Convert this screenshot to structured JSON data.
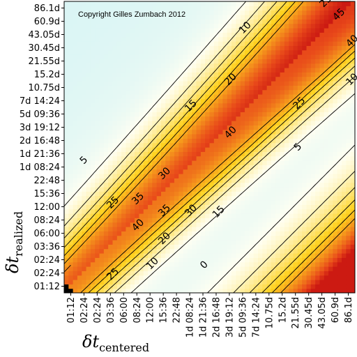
{
  "chart_data": {
    "type": "heatmap",
    "title": "",
    "copyright": "Copyright Gilles Zumbach 2012",
    "xlabel": {
      "main": "δt",
      "sub": "centered"
    },
    "ylabel": {
      "main": "δt",
      "sub": "realized"
    },
    "x_ticks": [
      "01:12",
      "02:24",
      "02:24",
      "03:36",
      "06:00",
      "08:24",
      "12:00",
      "15:36",
      "22:48",
      "1d 08:24",
      "1d 21:36",
      "2d 16:48",
      "3d 19:12",
      "5d 09:36",
      "7d 14:24",
      "10.75d",
      "15.2d",
      "21.55d",
      "30.45d",
      "43.05d",
      "60.9d",
      "86.1d"
    ],
    "y_ticks": [
      "01:12",
      "02:24",
      "02:24",
      "03:36",
      "06:00",
      "08:24",
      "12:00",
      "15:36",
      "22:48",
      "1d 08:24",
      "1d 21:36",
      "2d 16:48",
      "3d 19:12",
      "5d 09:36",
      "7d 14:24",
      "10.75d",
      "15.2d",
      "21.55d",
      "30.45d",
      "43.05d",
      "60.9d",
      "86.1d"
    ],
    "contour_levels": [
      0,
      5,
      10,
      15,
      20,
      25,
      30,
      35,
      40,
      45
    ],
    "contour_labels": [
      {
        "text": "25",
        "i": 19.3,
        "j": 21.5
      },
      {
        "text": "45",
        "i": 20.3,
        "j": 20.5
      },
      {
        "text": "10",
        "i": 13.2,
        "j": 19.5
      },
      {
        "text": "40",
        "i": 21.3,
        "j": 18.5
      },
      {
        "text": "20",
        "i": 12.1,
        "j": 15.6
      },
      {
        "text": "10",
        "i": 21.3,
        "j": 15.6
      },
      {
        "text": "15",
        "i": 9.1,
        "j": 13.6
      },
      {
        "text": "25",
        "i": 17.3,
        "j": 13.8
      },
      {
        "text": "40",
        "i": 12.1,
        "j": 11.6
      },
      {
        "text": "5",
        "i": 17.2,
        "j": 10.5
      },
      {
        "text": "5",
        "i": 1.0,
        "j": 9.5
      },
      {
        "text": "30",
        "i": 7.1,
        "j": 8.5
      },
      {
        "text": "35",
        "i": 5.1,
        "j": 6.6
      },
      {
        "text": "35",
        "i": 7.1,
        "j": 5.7
      },
      {
        "text": "30",
        "i": 9.1,
        "j": 5.7
      },
      {
        "text": "25",
        "i": 3.2,
        "j": 6.3
      },
      {
        "text": "40",
        "i": 5.1,
        "j": 4.6
      },
      {
        "text": "15",
        "i": 11.2,
        "j": 5.6
      },
      {
        "text": "20",
        "i": 7.1,
        "j": 3.6
      },
      {
        "text": "10",
        "i": 6.2,
        "j": 1.7
      },
      {
        "text": "25",
        "i": 3.2,
        "j": 0.9
      },
      {
        "text": "0",
        "i": 10.1,
        "j": 1.6
      }
    ],
    "colors": {
      "cold": "#bfeef7",
      "zero": "#fffff2",
      "warm": "#ffd21e",
      "hot": "#e8481a",
      "peak": "#cc1a12"
    }
  }
}
